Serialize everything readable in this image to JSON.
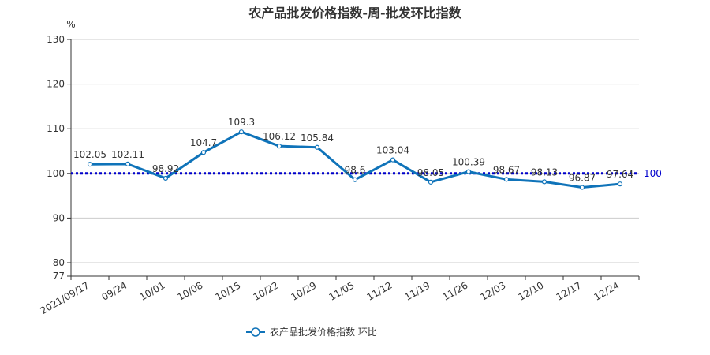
{
  "chart_data": {
    "type": "line",
    "title": "农产品批发价格指数-周-批发环比指数",
    "ylabel": "%",
    "ylim": [
      77,
      130
    ],
    "yticks": [
      77,
      80,
      90,
      100,
      110,
      120,
      130
    ],
    "grid": true,
    "categories": [
      "2021/09/17",
      "09/24",
      "10/01",
      "10/08",
      "10/15",
      "10/22",
      "10/29",
      "11/05",
      "11/12",
      "11/19",
      "11/26",
      "12/03",
      "12/10",
      "12/17",
      "12/24"
    ],
    "series": [
      {
        "name": "农产品批发价格指数  环比",
        "color": "#0f73b9",
        "values": [
          102.05,
          102.11,
          98.92,
          104.7,
          109.3,
          106.12,
          105.84,
          98.6,
          103.04,
          98.05,
          100.39,
          98.67,
          98.13,
          96.87,
          97.64
        ],
        "labels": [
          "102.05",
          "102.11",
          "98.92",
          "104.7",
          "109.3",
          "106.12",
          "105.84",
          "98.6",
          "103.04",
          "98.05",
          "100.39",
          "98.67",
          "98.13",
          "96.87",
          "97.64"
        ]
      }
    ],
    "reference_line": {
      "value": 100,
      "label": "100",
      "color": "#0000cc"
    },
    "legend_position": "bottom-center"
  }
}
